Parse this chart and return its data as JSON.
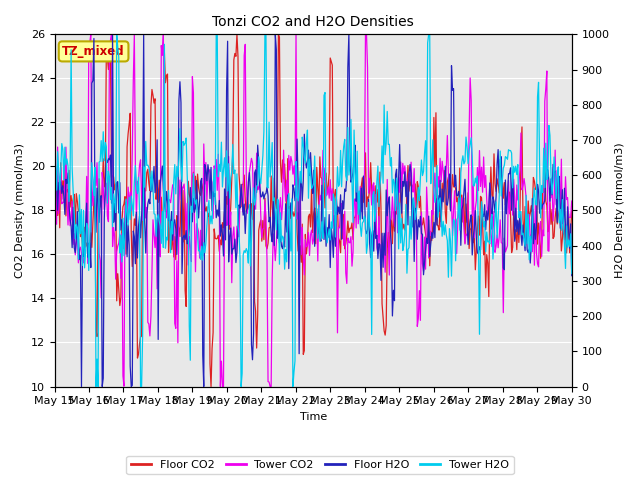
{
  "title": "Tonzi CO2 and H2O Densities",
  "xlabel": "Time",
  "ylabel_left": "CO2 Density (mmol/m3)",
  "ylabel_right": "H2O Density (mmol/m3)",
  "annotation": "TZ_mixed",
  "annotation_color": "#cc0000",
  "annotation_bg": "#ffff99",
  "annotation_border": "#bbaa00",
  "ylim_left": [
    10,
    26
  ],
  "ylim_right": [
    0,
    1000
  ],
  "bg_color": "#e8e8e8",
  "legend_entries": [
    "Floor CO2",
    "Tower CO2",
    "Floor H2O",
    "Tower H2O"
  ],
  "line_colors": [
    "#dd2222",
    "#ee00ee",
    "#2222bb",
    "#00ccee"
  ],
  "x_tick_labels": [
    "May 15",
    "May 16",
    "May 17",
    "May 18",
    "May 19",
    "May 20",
    "May 21",
    "May 22",
    "May 23",
    "May 24",
    "May 25",
    "May 26",
    "May 27",
    "May 28",
    "May 29",
    "May 30"
  ],
  "yticks_left": [
    10,
    12,
    14,
    16,
    18,
    20,
    22,
    24,
    26
  ],
  "yticks_right": [
    0,
    100,
    200,
    300,
    400,
    500,
    600,
    700,
    800,
    900,
    1000
  ]
}
